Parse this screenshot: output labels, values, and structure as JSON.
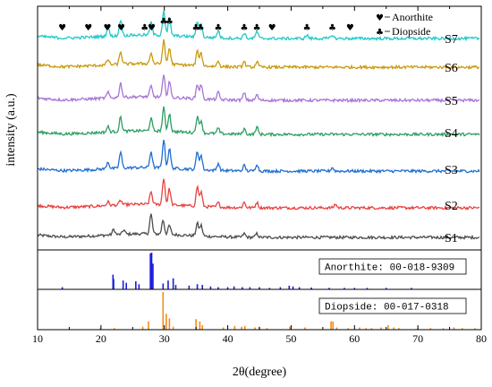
{
  "chart_data": {
    "type": "line",
    "xlabel": "2θ(degree)",
    "ylabel": "intensity (a.u.)",
    "xlim": [
      10,
      80
    ],
    "x_ticks": [
      10,
      20,
      30,
      40,
      50,
      60,
      70,
      80
    ],
    "legend": [
      {
        "symbol": "♥",
        "label": "Anorthite"
      },
      {
        "symbol": "♣",
        "label": "Diopside"
      }
    ],
    "series": [
      {
        "name": "S1",
        "color": "#4d4d4d"
      },
      {
        "name": "S2",
        "color": "#e8413f"
      },
      {
        "name": "S3",
        "color": "#1f6fd1"
      },
      {
        "name": "S4",
        "color": "#2e9e63"
      },
      {
        "name": "S5",
        "color": "#a874d6"
      },
      {
        "name": "S6",
        "color": "#c99a0c"
      },
      {
        "name": "S7",
        "color": "#1fc8c8"
      }
    ],
    "peak_markers": [
      {
        "x": 13.9,
        "symbol": "♥"
      },
      {
        "x": 18.0,
        "symbol": "♥"
      },
      {
        "x": 21.0,
        "symbol": "♥"
      },
      {
        "x": 23.2,
        "symbol": "♥"
      },
      {
        "x": 26.9,
        "symbol": "♣"
      },
      {
        "x": 28.0,
        "symbol": "♥"
      },
      {
        "x": 29.9,
        "symbol": "♣"
      },
      {
        "x": 30.8,
        "symbol": "♣"
      },
      {
        "x": 35.0,
        "symbol": "♣"
      },
      {
        "x": 35.7,
        "symbol": "♣"
      },
      {
        "x": 38.5,
        "symbol": "♣"
      },
      {
        "x": 42.6,
        "symbol": "♣"
      },
      {
        "x": 44.6,
        "symbol": "♣"
      },
      {
        "x": 47.0,
        "symbol": "♥"
      },
      {
        "x": 52.5,
        "symbol": "♣"
      },
      {
        "x": 56.5,
        "symbol": "♣"
      },
      {
        "x": 59.3,
        "symbol": "♥"
      }
    ],
    "reference_patterns": [
      {
        "label": "Anorthite: 00-018-9309",
        "color": "#1a1adb",
        "lines": [
          [
            13.9,
            6
          ],
          [
            21.9,
            40
          ],
          [
            22.0,
            28
          ],
          [
            23.5,
            24
          ],
          [
            24.0,
            18
          ],
          [
            25.5,
            22
          ],
          [
            26.0,
            14
          ],
          [
            27.8,
            98
          ],
          [
            28.0,
            100
          ],
          [
            28.2,
            70
          ],
          [
            29.8,
            16
          ],
          [
            30.6,
            24
          ],
          [
            31.4,
            30
          ],
          [
            31.8,
            12
          ],
          [
            33.9,
            10
          ],
          [
            35.2,
            14
          ],
          [
            36.0,
            12
          ],
          [
            37.3,
            8
          ],
          [
            38.5,
            6
          ],
          [
            40.0,
            6
          ],
          [
            41.0,
            8
          ],
          [
            42.3,
            6
          ],
          [
            43.5,
            6
          ],
          [
            45.0,
            6
          ],
          [
            46.6,
            4
          ],
          [
            48.3,
            6
          ],
          [
            49.7,
            10
          ],
          [
            50.3,
            8
          ],
          [
            51.3,
            6
          ],
          [
            53.2,
            5
          ],
          [
            56.0,
            4
          ],
          [
            58.4,
            4
          ],
          [
            60.0,
            4
          ],
          [
            62.0,
            4
          ],
          [
            65.0,
            4
          ],
          [
            69.0,
            4
          ]
        ]
      },
      {
        "label": "Diopside: 00-017-0318",
        "color": "#f28c1b",
        "lines": [
          [
            19.9,
            4
          ],
          [
            22.1,
            4
          ],
          [
            26.6,
            8
          ],
          [
            27.5,
            22
          ],
          [
            29.8,
            100
          ],
          [
            30.3,
            42
          ],
          [
            30.8,
            30
          ],
          [
            31.4,
            8
          ],
          [
            35.0,
            28
          ],
          [
            35.6,
            22
          ],
          [
            36.0,
            12
          ],
          [
            39.3,
            6
          ],
          [
            41.1,
            10
          ],
          [
            42.2,
            8
          ],
          [
            42.7,
            10
          ],
          [
            44.3,
            6
          ],
          [
            45.0,
            8
          ],
          [
            46.2,
            4
          ],
          [
            49.8,
            8
          ],
          [
            52.2,
            6
          ],
          [
            56.3,
            22
          ],
          [
            56.6,
            22
          ],
          [
            57.2,
            6
          ],
          [
            59.0,
            4
          ],
          [
            60.8,
            6
          ],
          [
            61.8,
            4
          ],
          [
            62.7,
            4
          ],
          [
            64.2,
            6
          ],
          [
            65.3,
            12
          ],
          [
            66.2,
            6
          ],
          [
            67.0,
            4
          ],
          [
            70.0,
            4
          ],
          [
            72.0,
            4
          ],
          [
            74.0,
            4
          ],
          [
            75.7,
            6
          ],
          [
            77.0,
            4
          ],
          [
            79.0,
            4
          ]
        ]
      }
    ],
    "peaks_by_series": {
      "S1": [
        [
          27.9,
          22
        ],
        [
          29.8,
          16
        ],
        [
          30.8,
          10
        ],
        [
          35.2,
          14
        ],
        [
          35.8,
          12
        ],
        [
          22.0,
          6
        ],
        [
          23.6,
          5
        ],
        [
          42.6,
          4
        ],
        [
          44.6,
          4
        ]
      ],
      "S2": [
        [
          21.1,
          4
        ],
        [
          23.1,
          5
        ],
        [
          27.9,
          14
        ],
        [
          29.9,
          30
        ],
        [
          30.8,
          18
        ],
        [
          35.2,
          22
        ],
        [
          35.8,
          16
        ],
        [
          38.5,
          5
        ],
        [
          42.6,
          6
        ],
        [
          44.6,
          6
        ],
        [
          57.0,
          4
        ]
      ],
      "S3": [
        [
          21.1,
          8
        ],
        [
          23.1,
          18
        ],
        [
          27.9,
          18
        ],
        [
          29.9,
          32
        ],
        [
          30.8,
          22
        ],
        [
          35.2,
          20
        ],
        [
          35.8,
          16
        ],
        [
          38.5,
          8
        ],
        [
          42.6,
          6
        ],
        [
          44.6,
          8
        ],
        [
          56.5,
          4
        ]
      ],
      "S4": [
        [
          21.1,
          6
        ],
        [
          23.1,
          16
        ],
        [
          27.9,
          14
        ],
        [
          29.9,
          26
        ],
        [
          30.8,
          20
        ],
        [
          35.2,
          18
        ],
        [
          35.8,
          14
        ],
        [
          38.5,
          6
        ],
        [
          42.6,
          6
        ],
        [
          44.6,
          8
        ]
      ],
      "S5": [
        [
          21.1,
          6
        ],
        [
          23.1,
          16
        ],
        [
          27.9,
          12
        ],
        [
          29.9,
          24
        ],
        [
          30.8,
          18
        ],
        [
          35.2,
          16
        ],
        [
          35.8,
          16
        ],
        [
          38.5,
          8
        ],
        [
          42.6,
          8
        ],
        [
          44.6,
          6
        ]
      ],
      "S6": [
        [
          21.1,
          6
        ],
        [
          23.1,
          14
        ],
        [
          27.9,
          12
        ],
        [
          29.9,
          26
        ],
        [
          30.8,
          18
        ],
        [
          35.2,
          16
        ],
        [
          35.8,
          14
        ],
        [
          38.5,
          6
        ],
        [
          42.6,
          6
        ],
        [
          44.6,
          6
        ]
      ],
      "S7": [
        [
          21.1,
          10
        ],
        [
          23.1,
          18
        ],
        [
          27.9,
          14
        ],
        [
          29.9,
          28
        ],
        [
          30.8,
          20
        ],
        [
          35.2,
          18
        ],
        [
          35.8,
          14
        ],
        [
          38.5,
          8
        ],
        [
          42.6,
          6
        ],
        [
          44.6,
          8
        ],
        [
          52.5,
          4
        ],
        [
          56.5,
          4
        ]
      ]
    }
  }
}
